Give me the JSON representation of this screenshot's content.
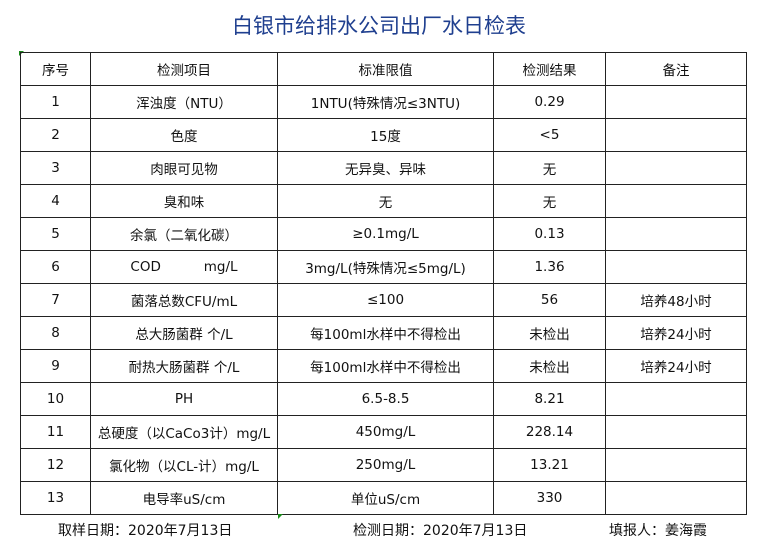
{
  "title": "白银市给排水公司出厂水日检表",
  "headers": [
    "序号",
    "检测项目",
    "标准限值",
    "检测结果",
    "备注"
  ],
  "rows": [
    [
      "1",
      "浑浊度（NTU）",
      "1NTU(特殊情况≤3NTU)",
      "0.29",
      ""
    ],
    [
      "2",
      "色度",
      "15度",
      "<5",
      ""
    ],
    [
      "3",
      "肉眼可见物",
      "无异臭、异味",
      "无",
      ""
    ],
    [
      "4",
      "臭和味",
      "无",
      "无",
      ""
    ],
    [
      "5",
      "余氯（二氧化碳）",
      "≥0.1mg/L",
      "0.13",
      ""
    ],
    [
      "6",
      "COD          mg/L",
      "3mg/L(特殊情况≤5mg/L)",
      "1.36",
      ""
    ],
    [
      "7",
      "菌落总数CFU/mL",
      "≤100",
      "56",
      "培养48小时"
    ],
    [
      "8",
      "总大肠菌群 个/L",
      "每100ml水样中不得检出",
      "未检出",
      "培养24小时"
    ],
    [
      "9",
      "耐热大肠菌群 个/L",
      "每100ml水样中不得检出",
      "未检出",
      "培养24小时"
    ],
    [
      "10",
      "PH",
      "6.5-8.5",
      "8.21",
      ""
    ],
    [
      "11",
      "总硬度（以CaCo3计）mg/L",
      "450mg/L",
      "228.14",
      ""
    ],
    [
      "12",
      "氯化物（以CL-计）mg/L",
      "250mg/L",
      "13.21",
      ""
    ],
    [
      "13",
      "电导率uS/cm",
      "单位uS/cm",
      "330",
      ""
    ]
  ],
  "footer": {
    "sample_date": "取样日期：2020年7月13日",
    "test_date": "检测日期：2020年7月13日",
    "reporter": "填报人：姜海霞"
  }
}
